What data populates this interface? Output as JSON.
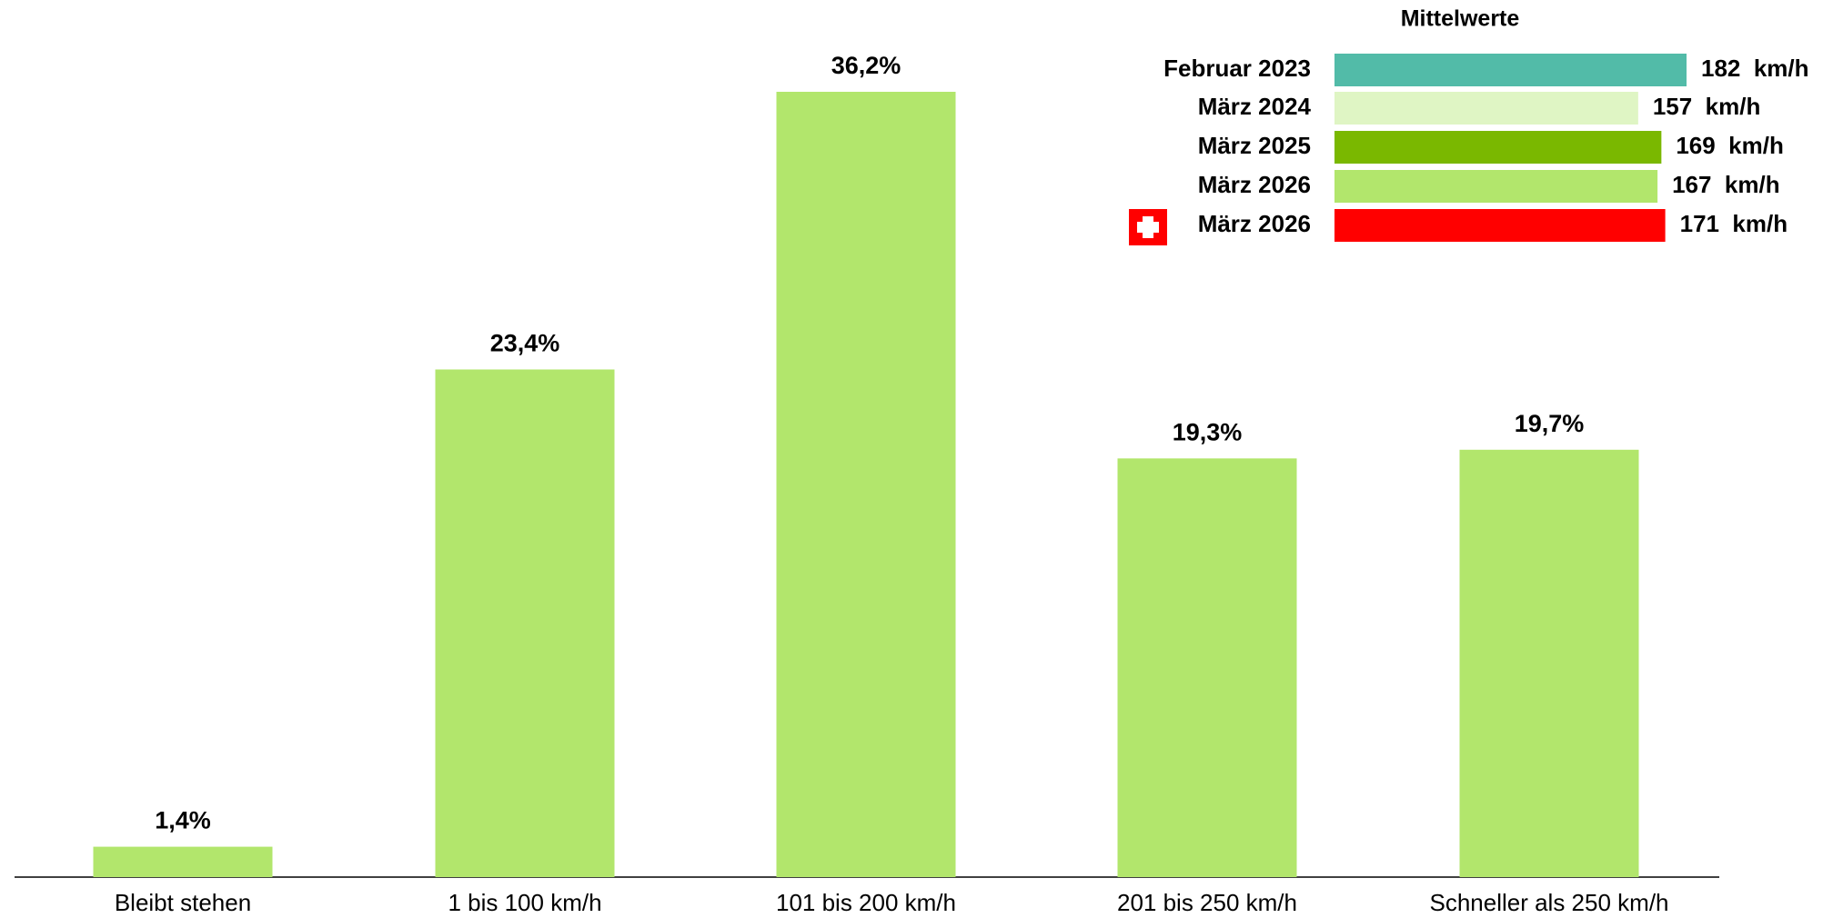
{
  "chart_data": [
    {
      "type": "bar",
      "categories": [
        "Bleibt stehen",
        "1 bis 100 km/h",
        "101 bis 200 km/h",
        "201 bis 250 km/h",
        "Schneller als 250 km/h"
      ],
      "values": [
        1.4,
        23.4,
        36.2,
        19.3,
        19.7
      ],
      "value_labels": [
        "1,4%",
        "23,4%",
        "36,2%",
        "19,3%",
        "19,7%"
      ],
      "color": "#b2e66c"
    },
    {
      "type": "hbar",
      "title": "Mittelwerte",
      "categories": [
        "Februar 2023",
        "März 2024",
        "März 2025",
        "März 2026",
        "März 2026"
      ],
      "values": [
        182,
        157,
        169,
        167,
        171
      ],
      "value_labels": [
        "182  km/h",
        "157  km/h",
        "169  km/h",
        "167  km/h",
        "171  km/h"
      ],
      "colors": [
        "#52bba8",
        "#dff5c4",
        "#7ab800",
        "#b2e66c",
        "#ff0000"
      ]
    }
  ]
}
